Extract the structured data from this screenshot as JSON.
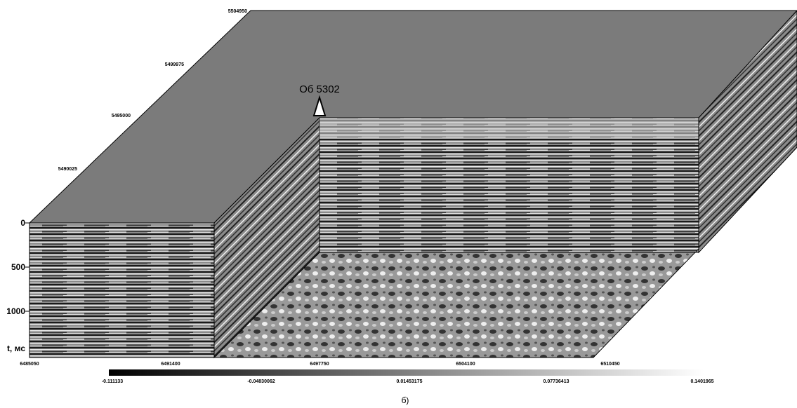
{
  "figure": {
    "annotation": "Об 5302",
    "caption": "б)",
    "y_axis": {
      "labels": [
        "0",
        "500",
        "1000"
      ],
      "title": "t, мс"
    },
    "diagonal_axis": {
      "labels": [
        "5504950",
        "5499975",
        "5495000",
        "5490025"
      ]
    },
    "x_axis": {
      "labels": [
        "6485050",
        "6491400",
        "6497750",
        "6504100",
        "6510450"
      ]
    },
    "colorbar": {
      "labels": [
        "-0.111133",
        "-0.04830062",
        "0.01453175",
        "0.07736413",
        "0.1401965"
      ]
    }
  }
}
